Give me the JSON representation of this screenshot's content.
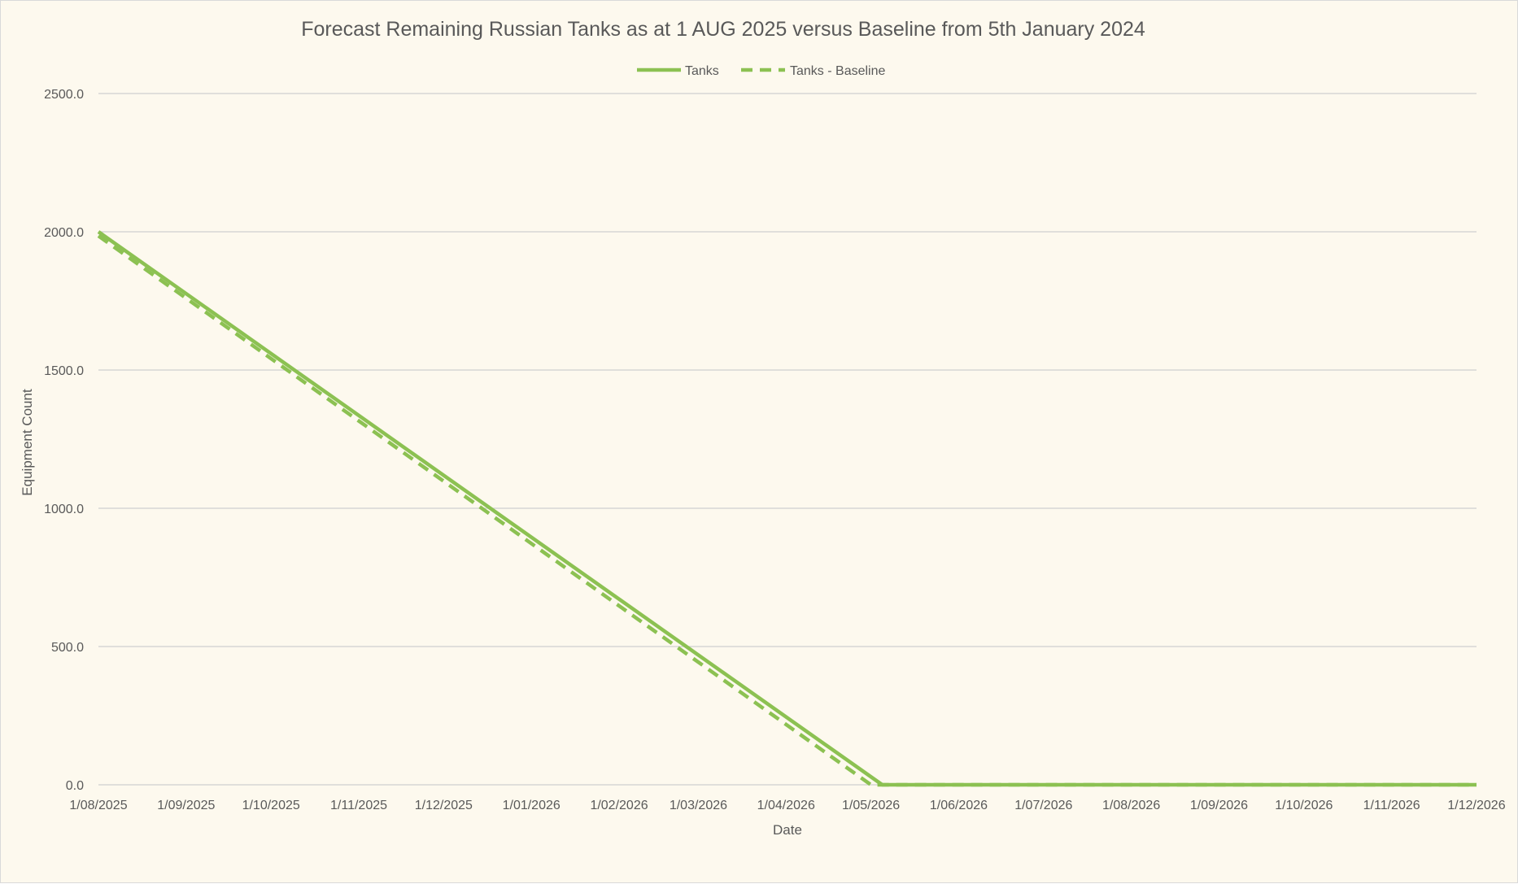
{
  "chart_data": {
    "type": "line",
    "title": "Forecast Remaining Russian Tanks as at 1 AUG 2025 versus Baseline from 5th January 2024",
    "xlabel": "Date",
    "ylabel": "Equipment Count",
    "x_range": [
      "2025-08-01",
      "2026-12-01"
    ],
    "ylim": [
      0,
      2500
    ],
    "y_ticks": [
      0,
      500,
      1000,
      1500,
      2000,
      2500
    ],
    "y_tick_labels": [
      "0.0",
      "500.0",
      "1000.0",
      "1500.0",
      "2000.0",
      "2500.0"
    ],
    "x_ticks": [
      "2025-08-01",
      "2025-09-01",
      "2025-10-01",
      "2025-11-01",
      "2025-12-01",
      "2026-01-01",
      "2026-02-01",
      "2026-03-01",
      "2026-04-01",
      "2026-05-01",
      "2026-06-01",
      "2026-07-01",
      "2026-08-01",
      "2026-09-01",
      "2026-10-01",
      "2026-11-01",
      "2026-12-01"
    ],
    "x_tick_labels": [
      "1/08/2025",
      "1/09/2025",
      "1/10/2025",
      "1/11/2025",
      "1/12/2025",
      "1/01/2026",
      "1/02/2026",
      "1/03/2026",
      "1/04/2026",
      "1/05/2026",
      "1/06/2026",
      "1/07/2026",
      "1/08/2026",
      "1/09/2026",
      "1/10/2026",
      "1/11/2026",
      "1/12/2026"
    ],
    "grid": true,
    "legend_position": "top-center",
    "series": [
      {
        "name": "Tanks",
        "style": "solid",
        "color": "#8cc152",
        "points": [
          {
            "x": "2025-08-01",
            "y": 2000
          },
          {
            "x": "2026-05-05",
            "y": 0
          },
          {
            "x": "2026-12-01",
            "y": 0
          }
        ]
      },
      {
        "name": "Tanks - Baseline",
        "style": "dashed",
        "color": "#8cc152",
        "points": [
          {
            "x": "2025-08-01",
            "y": 1985
          },
          {
            "x": "2026-05-01",
            "y": 0
          },
          {
            "x": "2026-12-01",
            "y": 0
          }
        ]
      }
    ]
  }
}
